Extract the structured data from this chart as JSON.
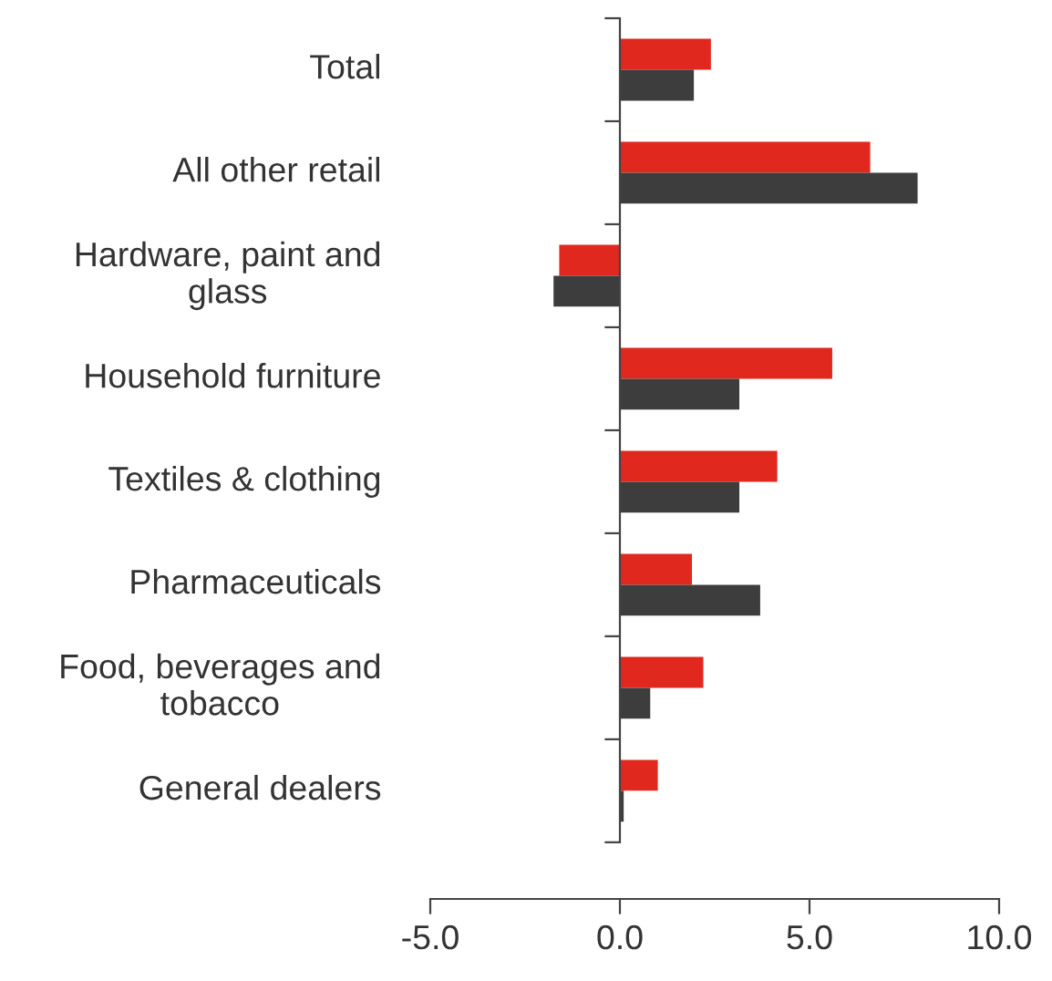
{
  "chart_data": {
    "type": "bar",
    "orientation": "horizontal",
    "categories": [
      "Total",
      "All other retail",
      "Hardware, paint and\nglass",
      "Household furniture",
      "Textiles & clothing",
      "Pharmaceuticals",
      "Food, beverages and\ntobacco",
      "General dealers"
    ],
    "series": [
      {
        "color": "#e0281e",
        "values": [
          2.4,
          6.6,
          -1.6,
          5.6,
          4.15,
          1.9,
          2.2,
          1.0
        ]
      },
      {
        "color": "#3d3d3d",
        "values": [
          1.95,
          7.85,
          -1.75,
          3.15,
          3.15,
          3.7,
          0.8,
          0.1
        ]
      }
    ],
    "xlim": [
      -5,
      10
    ],
    "xticks": [
      {
        "value": -5,
        "label": "-5.0"
      },
      {
        "value": 0,
        "label": "0.0"
      },
      {
        "value": 5,
        "label": "5.0"
      },
      {
        "value": 10,
        "label": "10.0"
      }
    ],
    "legend": false
  }
}
